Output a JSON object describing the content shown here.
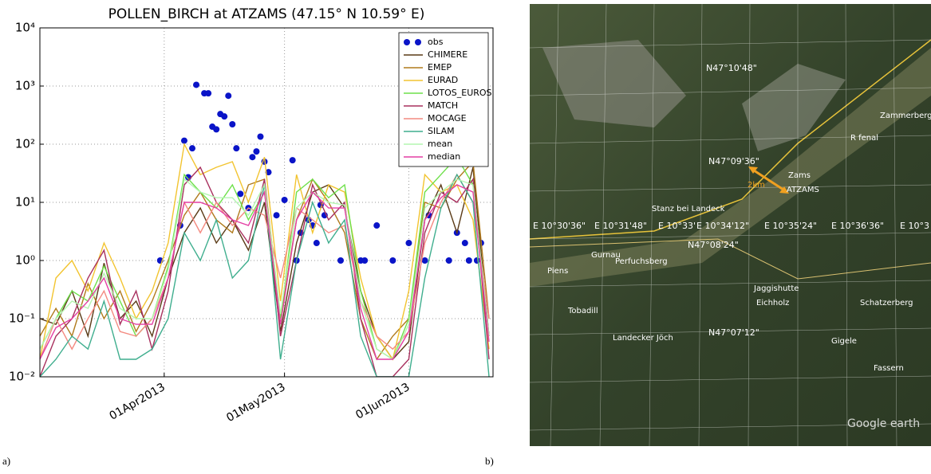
{
  "chart_data": {
    "type": "line",
    "title": "POLLEN_BIRCH at ATZAMS (47.15° N 10.59° E)",
    "log_y": true,
    "grid": true,
    "legend": "upper right",
    "xlim": [
      "2013-03-01",
      "2013-06-22"
    ],
    "xticks": [
      {
        "value": "2013-04-01",
        "label": "01Apr2013"
      },
      {
        "value": "2013-05-01",
        "label": "01May2013"
      },
      {
        "value": "2013-06-01",
        "label": "01Jun2013"
      }
    ],
    "ylim": [
      0.01,
      10000
    ],
    "yticks": [
      {
        "value": 10000,
        "label": "10⁴"
      },
      {
        "value": 1000,
        "label": "10³"
      },
      {
        "value": 100,
        "label": "10²"
      },
      {
        "value": 10,
        "label": "10¹"
      },
      {
        "value": 1,
        "label": "10⁰"
      },
      {
        "value": 0.1,
        "label": "10⁻¹"
      },
      {
        "value": 0.01,
        "label": "10⁻²"
      }
    ],
    "x": [
      "2013-03-01",
      "2013-03-05",
      "2013-03-09",
      "2013-03-13",
      "2013-03-17",
      "2013-03-21",
      "2013-03-25",
      "2013-03-29",
      "2013-04-02",
      "2013-04-06",
      "2013-04-10",
      "2013-04-14",
      "2013-04-18",
      "2013-04-22",
      "2013-04-26",
      "2013-04-30",
      "2013-05-04",
      "2013-05-08",
      "2013-05-12",
      "2013-05-16",
      "2013-05-20",
      "2013-05-24",
      "2013-05-28",
      "2013-06-01",
      "2013-06-05",
      "2013-06-09",
      "2013-06-13",
      "2013-06-17",
      "2013-06-21"
    ],
    "series": [
      {
        "name": "obs",
        "type": "scatter",
        "color": "#0a14c8",
        "x": [
          "2013-03-31",
          "2013-04-05",
          "2013-04-06",
          "2013-04-07",
          "2013-04-08",
          "2013-04-09",
          "2013-04-11",
          "2013-04-12",
          "2013-04-13",
          "2013-04-14",
          "2013-04-15",
          "2013-04-16",
          "2013-04-17",
          "2013-04-18",
          "2013-04-19",
          "2013-04-20",
          "2013-04-22",
          "2013-04-23",
          "2013-04-24",
          "2013-04-25",
          "2013-04-26",
          "2013-04-27",
          "2013-04-29",
          "2013-05-01",
          "2013-05-03",
          "2013-05-04",
          "2013-05-05",
          "2013-05-07",
          "2013-05-08",
          "2013-05-09",
          "2013-05-10",
          "2013-05-11",
          "2013-05-15",
          "2013-05-20",
          "2013-05-21",
          "2013-05-24",
          "2013-05-28",
          "2013-06-01",
          "2013-06-05",
          "2013-06-06",
          "2013-06-11",
          "2013-06-13",
          "2013-06-15",
          "2013-06-16",
          "2013-06-18",
          "2013-06-19"
        ],
        "values": [
          1,
          4,
          115,
          27,
          85,
          1050,
          750,
          750,
          200,
          180,
          330,
          300,
          680,
          220,
          85,
          14,
          8,
          60,
          75,
          135,
          50,
          33,
          6,
          11,
          53,
          1,
          3,
          5,
          4,
          2,
          9,
          6,
          1,
          1,
          1,
          4,
          1,
          2,
          1,
          6,
          1,
          3,
          2,
          1,
          1,
          2
        ]
      },
      {
        "name": "CHIMERE",
        "color": "#5a3a16",
        "values": [
          0.1,
          0.08,
          0.3,
          0.05,
          0.9,
          0.1,
          0.2,
          0.05,
          0.5,
          3,
          8,
          2,
          5,
          1.5,
          10,
          0.06,
          2,
          15,
          20,
          8,
          0.3,
          0.05,
          0.02,
          0.04,
          5,
          20,
          3,
          40,
          0.05
        ]
      },
      {
        "name": "EMEP",
        "color": "#b07a1c",
        "values": [
          0.05,
          0.15,
          0.05,
          0.4,
          0.1,
          0.3,
          0.06,
          0.2,
          1,
          6,
          15,
          5,
          3,
          20,
          25,
          0.1,
          5,
          25,
          10,
          3,
          0.1,
          0.02,
          0.05,
          0.1,
          10,
          8,
          25,
          50,
          0.1
        ]
      },
      {
        "name": "EURAD",
        "color": "#f2c430",
        "values": [
          0.02,
          0.5,
          1,
          0.3,
          2,
          0.5,
          0.1,
          0.3,
          2,
          100,
          30,
          40,
          50,
          10,
          60,
          0.2,
          30,
          3,
          20,
          15,
          0.5,
          0.05,
          0.02,
          0.3,
          30,
          15,
          20,
          5,
          0.03
        ]
      },
      {
        "name": "LOTOS_EUROS",
        "color": "#6ee04a",
        "values": [
          0.03,
          0.1,
          0.3,
          0.2,
          0.8,
          0.2,
          0.05,
          0.1,
          0.8,
          30,
          15,
          8,
          20,
          5,
          15,
          0.1,
          15,
          25,
          12,
          20,
          0.3,
          0.03,
          0.02,
          0.1,
          15,
          30,
          60,
          20,
          0.05
        ]
      },
      {
        "name": "MATCH",
        "color": "#a8305e",
        "values": [
          0.01,
          0.05,
          0.1,
          0.5,
          1.5,
          0.08,
          0.3,
          0.03,
          0.3,
          20,
          40,
          10,
          5,
          2,
          25,
          0.05,
          1,
          20,
          5,
          10,
          0.1,
          0.01,
          0.01,
          0.02,
          3,
          15,
          10,
          25,
          0.02
        ]
      },
      {
        "name": "MOCAGE",
        "color": "#f48a80",
        "values": [
          0.02,
          0.1,
          0.03,
          0.1,
          0.3,
          0.06,
          0.05,
          0.1,
          0.5,
          10,
          3,
          10,
          4,
          8,
          6,
          0.5,
          8,
          5,
          3,
          4,
          0.2,
          0.05,
          0.03,
          0.06,
          2,
          10,
          30,
          10,
          0.1
        ]
      },
      {
        "name": "SILAM",
        "color": "#3fae8e",
        "values": [
          0.01,
          0.02,
          0.05,
          0.03,
          0.2,
          0.02,
          0.02,
          0.03,
          0.1,
          3,
          1,
          5,
          0.5,
          1,
          20,
          0.02,
          1,
          10,
          2,
          5,
          0.05,
          0.01,
          0.01,
          0.01,
          0.5,
          8,
          30,
          10,
          0.01
        ]
      },
      {
        "name": "mean",
        "color": "#b4f5b0",
        "values": [
          0.03,
          0.1,
          0.2,
          0.15,
          0.6,
          0.15,
          0.1,
          0.1,
          0.7,
          25,
          15,
          12,
          12,
          6,
          20,
          0.12,
          8,
          15,
          10,
          9,
          0.2,
          0.03,
          0.02,
          0.08,
          8,
          15,
          25,
          20,
          0.05
        ]
      },
      {
        "name": "median",
        "color": "#e43fa4",
        "values": [
          0.02,
          0.07,
          0.1,
          0.2,
          0.5,
          0.1,
          0.08,
          0.08,
          0.5,
          10,
          10,
          8,
          5,
          4,
          15,
          0.08,
          5,
          15,
          8,
          8,
          0.15,
          0.02,
          0.02,
          0.06,
          5,
          12,
          20,
          15,
          0.04
        ]
      }
    ]
  },
  "panel_labels": [
    "a)",
    "b)"
  ],
  "map": {
    "latitudes": [
      "N47°10'48\"",
      "N47°09'36\"",
      "N47°08'24\"",
      "N47°07'12\""
    ],
    "longitudes": [
      "E 10°30'36\"",
      "E 10°31'48\"",
      "E 10°33'",
      "E 10°34'12\"",
      "E 10°35'24\"",
      "E 10°36'36\"",
      "E 10°3"
    ],
    "places": [
      "Stanz bei Landeck",
      "Gurnau",
      "Perfuchsberg",
      "Piens",
      "Tobadill",
      "Landecker Jöch",
      "Jaggishutte",
      "Eichholz",
      "Schatzerberg",
      "Gigele",
      "Fassern",
      "Zammerberg",
      "R fenal",
      "Zams",
      "ATZAMS"
    ],
    "scale": "2km",
    "watermark": "Google earth"
  }
}
